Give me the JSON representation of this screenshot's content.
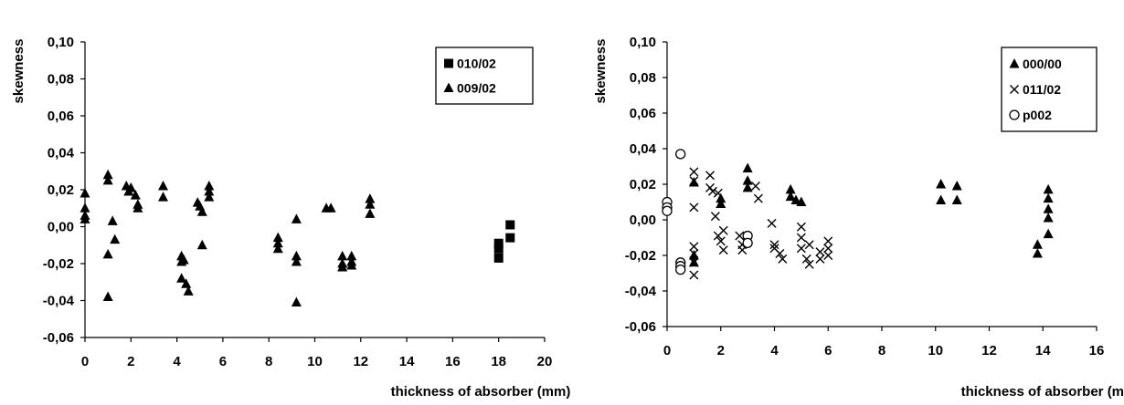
{
  "chart_data": [
    {
      "type": "scatter",
      "title": "",
      "xlabel": "thickness of absorber (mm)",
      "ylabel": "skewness",
      "xlim": [
        0,
        20
      ],
      "ylim": [
        -0.06,
        0.1
      ],
      "xticks": [
        0,
        2,
        4,
        6,
        8,
        10,
        12,
        14,
        16,
        18,
        20
      ],
      "yticks": [
        -0.06,
        -0.04,
        -0.02,
        0.0,
        0.02,
        0.04,
        0.06,
        0.08,
        0.1
      ],
      "xtick_labels": [
        "0",
        "2",
        "4",
        "6",
        "8",
        "10",
        "12",
        "14",
        "16",
        "18",
        "20"
      ],
      "ytick_labels": [
        "-0,06",
        "-0,04",
        "-0,02",
        "0,00",
        "0,02",
        "0,04",
        "0,06",
        "0,08",
        "0,10"
      ],
      "grid": false,
      "legend": "top-right",
      "series": [
        {
          "name": "010/02",
          "marker": "square",
          "points": [
            [
              18,
              -0.017
            ],
            [
              18,
              -0.012
            ],
            [
              18,
              -0.009
            ],
            [
              18.5,
              -0.006
            ],
            [
              18.5,
              0.001
            ]
          ]
        },
        {
          "name": "009/02",
          "marker": "triangle",
          "points": [
            [
              0,
              0.018
            ],
            [
              0,
              0.01
            ],
            [
              0,
              0.006
            ],
            [
              0,
              0.004
            ],
            [
              1,
              0.028
            ],
            [
              1,
              0.025
            ],
            [
              1,
              -0.015
            ],
            [
              1,
              -0.038
            ],
            [
              1.2,
              0.003
            ],
            [
              1.3,
              -0.007
            ],
            [
              1.8,
              0.022
            ],
            [
              1.9,
              0.019
            ],
            [
              2,
              0.021
            ],
            [
              2.2,
              0.017
            ],
            [
              2.3,
              0.012
            ],
            [
              2.3,
              0.01
            ],
            [
              3.4,
              0.022
            ],
            [
              3.4,
              0.016
            ],
            [
              4.2,
              -0.016
            ],
            [
              4.2,
              -0.019
            ],
            [
              4.2,
              -0.028
            ],
            [
              4.3,
              -0.018
            ],
            [
              4.4,
              -0.031
            ],
            [
              4.5,
              -0.035
            ],
            [
              4.9,
              0.013
            ],
            [
              5,
              0.011
            ],
            [
              5.1,
              0.008
            ],
            [
              5.1,
              -0.01
            ],
            [
              5.4,
              0.022
            ],
            [
              5.4,
              0.019
            ],
            [
              5.4,
              0.016
            ],
            [
              8.4,
              -0.006
            ],
            [
              8.4,
              -0.009
            ],
            [
              8.4,
              -0.012
            ],
            [
              9.2,
              0.004
            ],
            [
              9.2,
              -0.016
            ],
            [
              9.2,
              -0.019
            ],
            [
              9.2,
              -0.041
            ],
            [
              10.5,
              0.01
            ],
            [
              10.7,
              0.01
            ],
            [
              11.2,
              -0.016
            ],
            [
              11.2,
              -0.02
            ],
            [
              11.2,
              -0.022
            ],
            [
              11.6,
              -0.016
            ],
            [
              11.6,
              -0.019
            ],
            [
              11.6,
              -0.021
            ],
            [
              12.4,
              0.015
            ],
            [
              12.4,
              0.012
            ],
            [
              12.4,
              0.007
            ]
          ]
        }
      ]
    },
    {
      "type": "scatter",
      "title": "",
      "xlabel": "thickness of absorber (mm)",
      "ylabel": "skewness",
      "xlim": [
        0,
        16
      ],
      "ylim": [
        -0.06,
        0.1
      ],
      "xticks": [
        0,
        2,
        4,
        6,
        8,
        10,
        12,
        14,
        16
      ],
      "yticks": [
        -0.06,
        -0.04,
        -0.02,
        0.0,
        0.02,
        0.04,
        0.06,
        0.08,
        0.1
      ],
      "xtick_labels": [
        "0",
        "2",
        "4",
        "6",
        "8",
        "10",
        "12",
        "14",
        "16"
      ],
      "ytick_labels": [
        "-0,06",
        "-0,04",
        "-0,02",
        "0,00",
        "0,02",
        "0,04",
        "0,06",
        "0,08",
        "0,10"
      ],
      "grid": false,
      "legend": "top-right",
      "series": [
        {
          "name": "000/00",
          "marker": "triangle",
          "points": [
            [
              1,
              0.021
            ],
            [
              1,
              -0.02
            ],
            [
              1,
              -0.024
            ],
            [
              2,
              0.012
            ],
            [
              2,
              0.009
            ],
            [
              3,
              0.029
            ],
            [
              3,
              0.022
            ],
            [
              3,
              0.018
            ],
            [
              4.6,
              0.017
            ],
            [
              4.6,
              0.013
            ],
            [
              4.8,
              0.011
            ],
            [
              5,
              0.01
            ],
            [
              10.2,
              0.02
            ],
            [
              10.2,
              0.011
            ],
            [
              10.8,
              0.019
            ],
            [
              10.8,
              0.011
            ],
            [
              13.8,
              -0.014
            ],
            [
              13.8,
              -0.019
            ],
            [
              14.2,
              0.017
            ],
            [
              14.2,
              0.012
            ],
            [
              14.2,
              0.006
            ],
            [
              14.2,
              0.001
            ],
            [
              14.2,
              -0.008
            ]
          ]
        },
        {
          "name": "011/02",
          "marker": "x",
          "points": [
            [
              1,
              0.027
            ],
            [
              1,
              0.022
            ],
            [
              1,
              0.007
            ],
            [
              1,
              -0.015
            ],
            [
              1,
              -0.019
            ],
            [
              1,
              -0.024
            ],
            [
              1,
              -0.031
            ],
            [
              1.6,
              0.025
            ],
            [
              1.6,
              0.018
            ],
            [
              1.7,
              0.016
            ],
            [
              1.8,
              0.002
            ],
            [
              1.9,
              0.015
            ],
            [
              1.9,
              -0.009
            ],
            [
              2,
              -0.012
            ],
            [
              2.1,
              -0.006
            ],
            [
              2.1,
              -0.017
            ],
            [
              2.7,
              -0.009
            ],
            [
              2.8,
              -0.014
            ],
            [
              2.8,
              -0.017
            ],
            [
              3,
              -0.01
            ],
            [
              3.3,
              0.019
            ],
            [
              3.4,
              0.012
            ],
            [
              3.9,
              -0.002
            ],
            [
              4,
              -0.014
            ],
            [
              4,
              -0.016
            ],
            [
              4.2,
              -0.019
            ],
            [
              4.3,
              -0.022
            ],
            [
              5,
              -0.004
            ],
            [
              5,
              -0.01
            ],
            [
              5,
              -0.016
            ],
            [
              5.2,
              -0.022
            ],
            [
              5.3,
              -0.025
            ],
            [
              5.3,
              -0.014
            ],
            [
              5.7,
              -0.018
            ],
            [
              5.7,
              -0.022
            ],
            [
              6,
              -0.012
            ],
            [
              6,
              -0.016
            ],
            [
              6,
              -0.02
            ]
          ]
        },
        {
          "name": "p002",
          "marker": "circle",
          "points": [
            [
              0,
              0.01
            ],
            [
              0,
              0.007
            ],
            [
              0,
              0.005
            ],
            [
              0.5,
              0.037
            ],
            [
              0.5,
              -0.024
            ],
            [
              0.5,
              -0.026
            ],
            [
              0.5,
              -0.028
            ],
            [
              3,
              -0.009
            ],
            [
              3,
              -0.013
            ]
          ]
        }
      ]
    }
  ]
}
